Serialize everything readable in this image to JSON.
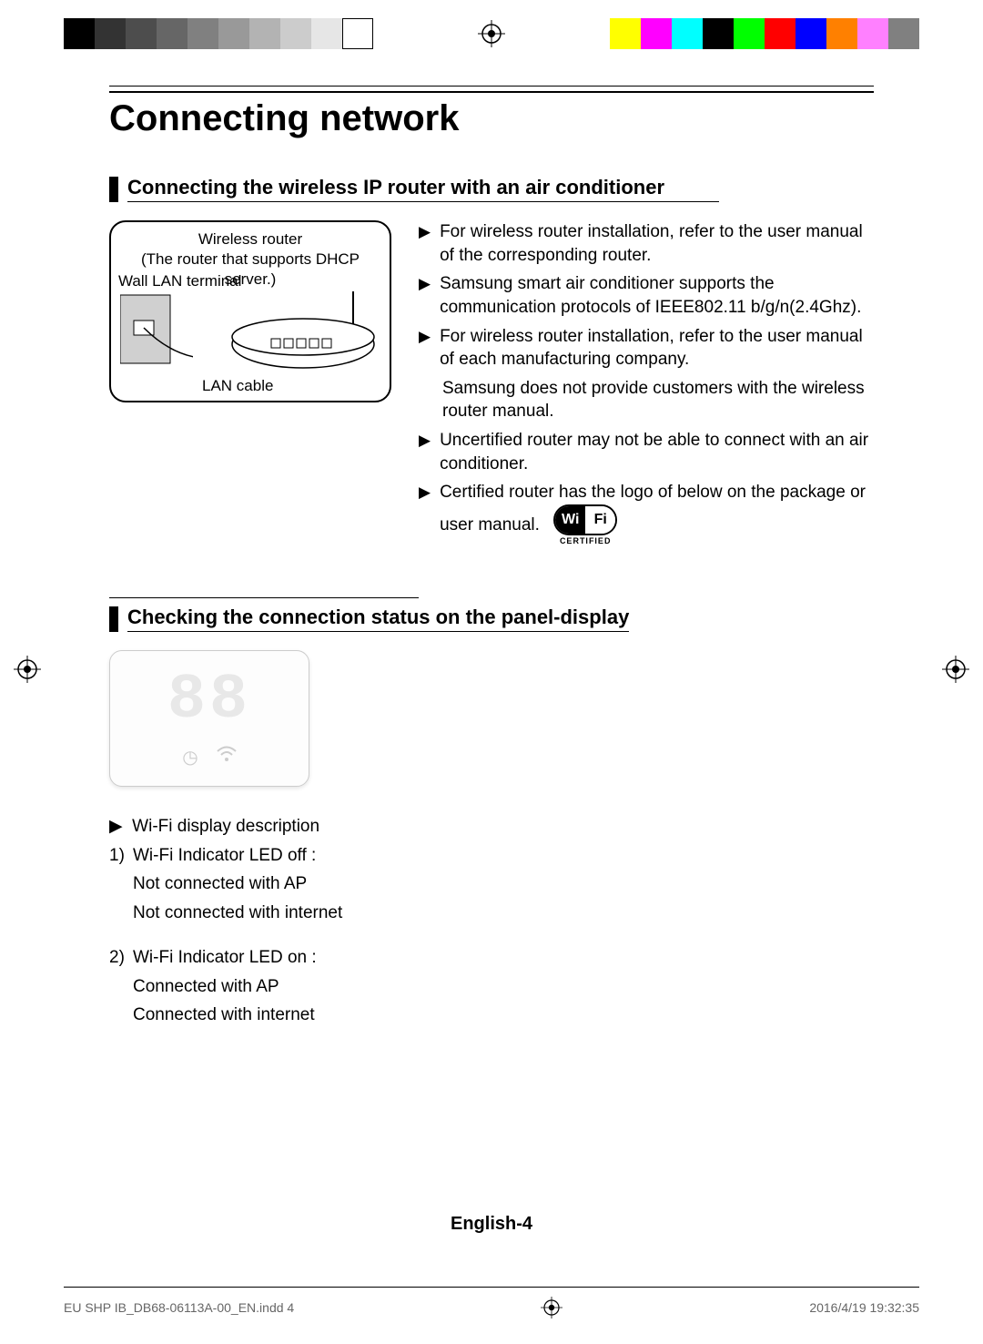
{
  "print_marks": {
    "gray_strip": [
      "#000000",
      "#333333",
      "#4d4d4d",
      "#666666",
      "#808080",
      "#999999",
      "#b3b3b3",
      "#cccccc",
      "#e6e6e6",
      "#ffffff"
    ],
    "color_strip": [
      "#ffff00",
      "#ff00ff",
      "#00ffff",
      "#000000",
      "#00ff00",
      "#ff0000",
      "#0000ff",
      "#ff8000",
      "#ff80ff",
      "#808080"
    ]
  },
  "page": {
    "title": "Connecting network",
    "footer_page": "English-4"
  },
  "section1": {
    "title": "Connecting the wireless IP router with an air conditioner",
    "diagram": {
      "router_label_1": "Wireless router",
      "router_label_2": "(The router that supports DHCP server.)",
      "wall_label": "Wall LAN terminal",
      "lan_label": "LAN cable"
    },
    "bullets": [
      "For wireless router installation, refer to the user manual of the corresponding router.",
      "Samsung smart air conditioner supports the communication protocols of IEEE802.11 b/g/n(2.4Ghz).",
      "For wireless router installation, refer to the user manual of each manufacturing company."
    ],
    "sub_note": "Samsung does not provide customers with the wireless router manual.",
    "bullets2": [
      "Uncertified router may not be able to connect with an air conditioner.",
      "Certified router has the logo of below on the package or user manual."
    ],
    "wifi_logo": {
      "left": "Wi",
      "right": "Fi",
      "cert": "CERTIFIED"
    }
  },
  "section2": {
    "title": "Checking the connection status on the panel-display",
    "heading": "Wi-Fi display description",
    "items": [
      {
        "num": "1)",
        "lines": [
          "Wi-Fi Indicator LED off :",
          "Not connected with AP",
          "Not connected with internet"
        ]
      },
      {
        "num": "2)",
        "lines": [
          "Wi-Fi Indicator LED on :",
          "Connected with AP",
          "Connected with internet"
        ]
      }
    ]
  },
  "print_footer": {
    "file": "EU SHP IB_DB68-06113A-00_EN.indd   4",
    "timestamp": "2016/4/19   19:32:35"
  }
}
